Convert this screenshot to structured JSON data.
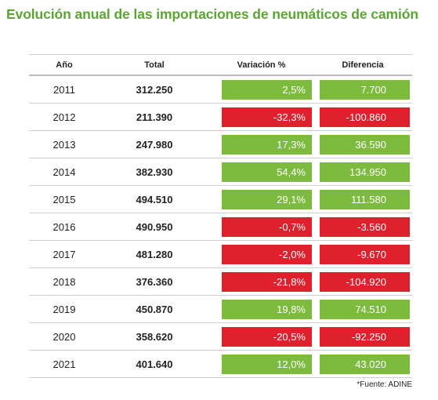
{
  "title": "Evolución anual de las importaciones de neumáticos de camión",
  "colors": {
    "positive": "#7dbb3f",
    "negative": "#e0202c",
    "title": "#5aa632"
  },
  "table": {
    "headers": {
      "year": "Año",
      "total": "Total",
      "variation": "Variación %",
      "difference": "Diferencia"
    },
    "rows": [
      {
        "year": "2011",
        "total": "312.250",
        "variation": "2,5%",
        "difference": "7.700",
        "trend": "up"
      },
      {
        "year": "2012",
        "total": "211.390",
        "variation": "-32,3%",
        "difference": "-100.860",
        "trend": "down"
      },
      {
        "year": "2013",
        "total": "247.980",
        "variation": "17,3%",
        "difference": "36.590",
        "trend": "up"
      },
      {
        "year": "2014",
        "total": "382.930",
        "variation": "54,4%",
        "difference": "134.950",
        "trend": "up"
      },
      {
        "year": "2015",
        "total": "494.510",
        "variation": "29,1%",
        "difference": "111.580",
        "trend": "up"
      },
      {
        "year": "2016",
        "total": "490.950",
        "variation": "-0,7%",
        "difference": "-3.560",
        "trend": "down"
      },
      {
        "year": "2017",
        "total": "481.280",
        "variation": "-2,0%",
        "difference": "-9.670",
        "trend": "down"
      },
      {
        "year": "2018",
        "total": "376.360",
        "variation": "-21,8%",
        "difference": "-104.920",
        "trend": "down"
      },
      {
        "year": "2019",
        "total": "450.870",
        "variation": "19,8%",
        "difference": "74.510",
        "trend": "up"
      },
      {
        "year": "2020",
        "total": "358.620",
        "variation": "-20,5%",
        "difference": "-92.250",
        "trend": "down"
      },
      {
        "year": "2021",
        "total": "401.640",
        "variation": "12,0%",
        "difference": "43.020",
        "trend": "up"
      }
    ]
  },
  "source": "*Fuente: ADINE"
}
